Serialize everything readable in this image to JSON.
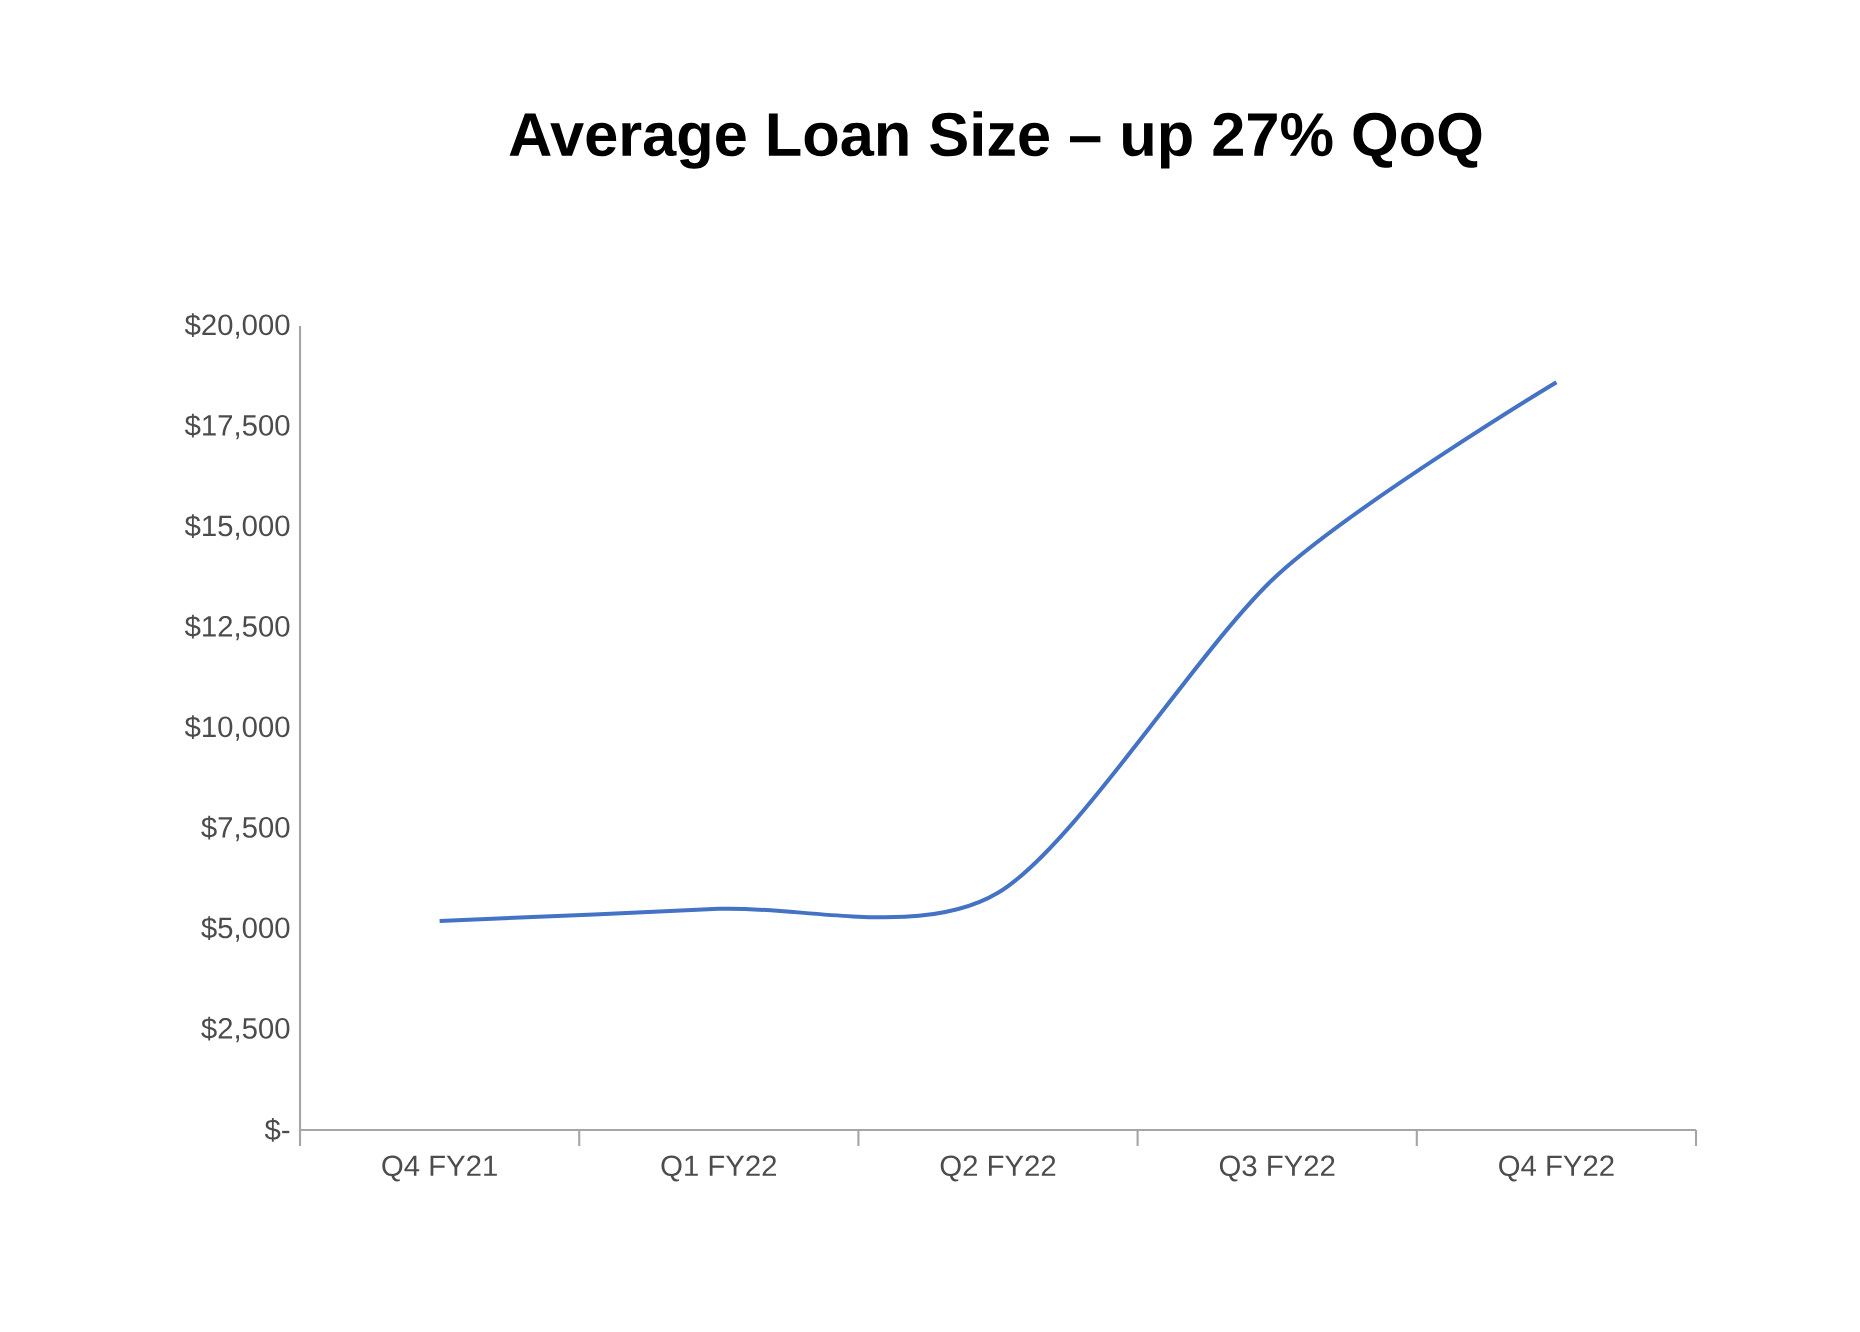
{
  "chart_data": {
    "type": "line",
    "title": "Average Loan Size – up 27% QoQ",
    "categories": [
      "Q4 FY21",
      "Q1 FY22",
      "Q2 FY22",
      "Q3 FY22",
      "Q4 FY22"
    ],
    "series": [
      {
        "color": "#4472c4",
        "values": [
          5200,
          5500,
          5900,
          13800,
          18600
        ]
      }
    ],
    "ylim": [
      0,
      20000
    ],
    "yticks": [
      {
        "value": 0,
        "label": "$-"
      },
      {
        "value": 2500,
        "label": "$2,500"
      },
      {
        "value": 5000,
        "label": "$5,000"
      },
      {
        "value": 7500,
        "label": "$7,500"
      },
      {
        "value": 10000,
        "label": "$10,000"
      },
      {
        "value": 12500,
        "label": "$12,500"
      },
      {
        "value": 15000,
        "label": "$15,000"
      },
      {
        "value": 17500,
        "label": "$17,500"
      },
      {
        "value": 20000,
        "label": "$20,000"
      }
    ],
    "grid": false,
    "marker": "none",
    "line_style": "solid"
  }
}
